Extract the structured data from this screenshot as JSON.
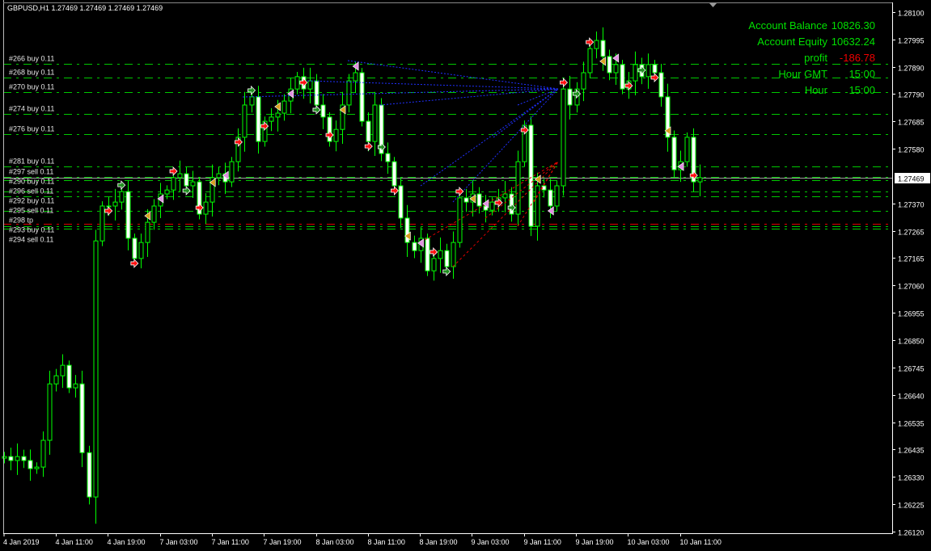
{
  "header": {
    "symbol_line": "GBPUSD,H1  1.27469 1.27469 1.27469 1.27469"
  },
  "account_panel": [
    {
      "label": "Account Balance",
      "value": "10826.30",
      "color": "#00e000"
    },
    {
      "label": "Account Equity",
      "value": "10632.24",
      "color": "#00e000"
    },
    {
      "label": "profit",
      "value": "-186.78",
      "color": "#f00000"
    },
    {
      "label": "Hour GMT",
      "value": "15:00",
      "color": "#00e000"
    },
    {
      "label": "Hour",
      "value": "15:00",
      "color": "#00e000"
    }
  ],
  "colors": {
    "background": "#000000",
    "candle_outline": "#00ff00",
    "bear_body": "#ffffff",
    "bull_body": "#000000",
    "order_line": "#00c800",
    "tp_line": "#e00000",
    "bid_line": "#a0a0a0",
    "axis": "#ffffff"
  },
  "chart_data": {
    "type": "candlestick",
    "timeframe": "H1",
    "y_axis_range": [
      1.2612,
      1.281
    ],
    "y_ticks": [
      "1.28100",
      "1.27995",
      "1.27890",
      "1.27790",
      "1.27685",
      "1.27580",
      "1.27370",
      "1.27265",
      "1.27165",
      "1.27060",
      "1.26955",
      "1.26850",
      "1.26745",
      "1.26640",
      "1.26535",
      "1.26435",
      "1.26330",
      "1.26225",
      "1.26120"
    ],
    "x_ticks": [
      "4 Jan 2019",
      "4 Jan 11:00",
      "4 Jan 19:00",
      "7 Jan 03:00",
      "7 Jan 11:00",
      "7 Jan 19:00",
      "8 Jan 03:00",
      "8 Jan 11:00",
      "8 Jan 19:00",
      "9 Jan 03:00",
      "9 Jan 11:00",
      "9 Jan 19:00",
      "10 Jan 03:00",
      "10 Jan 11:00"
    ],
    "current_price": "1.27469",
    "first_open": 1.264,
    "closes": [
      1.26406,
      1.26391,
      1.26406,
      1.26391,
      1.2636,
      1.26366,
      1.26468,
      1.26683,
      1.26714,
      1.26754,
      1.26668,
      1.26683,
      1.26421,
      1.26252,
      1.27228,
      1.27361,
      1.27361,
      1.27376,
      1.27416,
      1.27238,
      1.27161,
      1.27222,
      1.27299,
      1.27361,
      1.27407,
      1.27422,
      1.27469,
      1.27484,
      1.27438,
      1.27453,
      1.2733,
      1.27376,
      1.27469,
      1.27484,
      1.27453,
      1.2753,
      1.27623,
      1.27746,
      1.27777,
      1.27607,
      1.27684,
      1.277,
      1.27715,
      1.27761,
      1.27807,
      1.27854,
      1.27807,
      1.27838,
      1.27746,
      1.277,
      1.27607,
      1.27653,
      1.27746,
      1.27838,
      1.27869,
      1.27684,
      1.27607,
      1.27746,
      1.27561,
      1.2753,
      1.27438,
      1.27315,
      1.27222,
      1.27191,
      1.27238,
      1.27114,
      1.27161,
      1.27191,
      1.2713,
      1.27222,
      1.27392,
      1.27376,
      1.27407,
      1.27361,
      1.27345,
      1.27376,
      1.27392,
      1.27407,
      1.2733,
      1.2753,
      1.27669,
      1.27284,
      1.27438,
      1.27422,
      1.27361,
      1.27438,
      1.27807,
      1.27746,
      1.27807,
      1.27869,
      1.27961,
      1.27992,
      1.27931,
      1.27869,
      1.279,
      1.27807,
      1.27838,
      1.279,
      1.27854,
      1.279,
      1.27869,
      1.27777,
      1.27623,
      1.27499,
      1.2753,
      1.27623,
      1.27453,
      1.27469
    ],
    "order_lines": [
      {
        "label": "#266 buy 0.11",
        "price": 1.27903,
        "kind": "order"
      },
      {
        "label": "#268 buy 0.11",
        "price": 1.27851,
        "kind": "order"
      },
      {
        "label": "#270 buy 0.11",
        "price": 1.27795,
        "kind": "order"
      },
      {
        "label": "#274 buy 0.11",
        "price": 1.27712,
        "kind": "order"
      },
      {
        "label": "#276 buy 0.11",
        "price": 1.27635,
        "kind": "order"
      },
      {
        "label": "#281 buy 0.11",
        "price": 1.27512,
        "kind": "order"
      },
      {
        "label": "#297 sell 0.11",
        "price": 1.27472,
        "kind": "order"
      },
      {
        "label": "#290 buy 0.11",
        "price": 1.27459,
        "kind": "order"
      },
      {
        "label": "#296 sell 0.11",
        "price": 1.27416,
        "kind": "order"
      },
      {
        "label": "#292 buy 0.11",
        "price": 1.27398,
        "kind": "order"
      },
      {
        "label": "#295 sell 0.11",
        "price": 1.27342,
        "kind": "order"
      },
      {
        "label": "#298 tp",
        "price": 1.27293,
        "kind": "tp"
      },
      {
        "label": "#293 buy 0.11",
        "price": 1.27284,
        "kind": "order"
      },
      {
        "label": "#294 sell 0.11",
        "price": 1.27275,
        "kind": "order"
      }
    ]
  }
}
